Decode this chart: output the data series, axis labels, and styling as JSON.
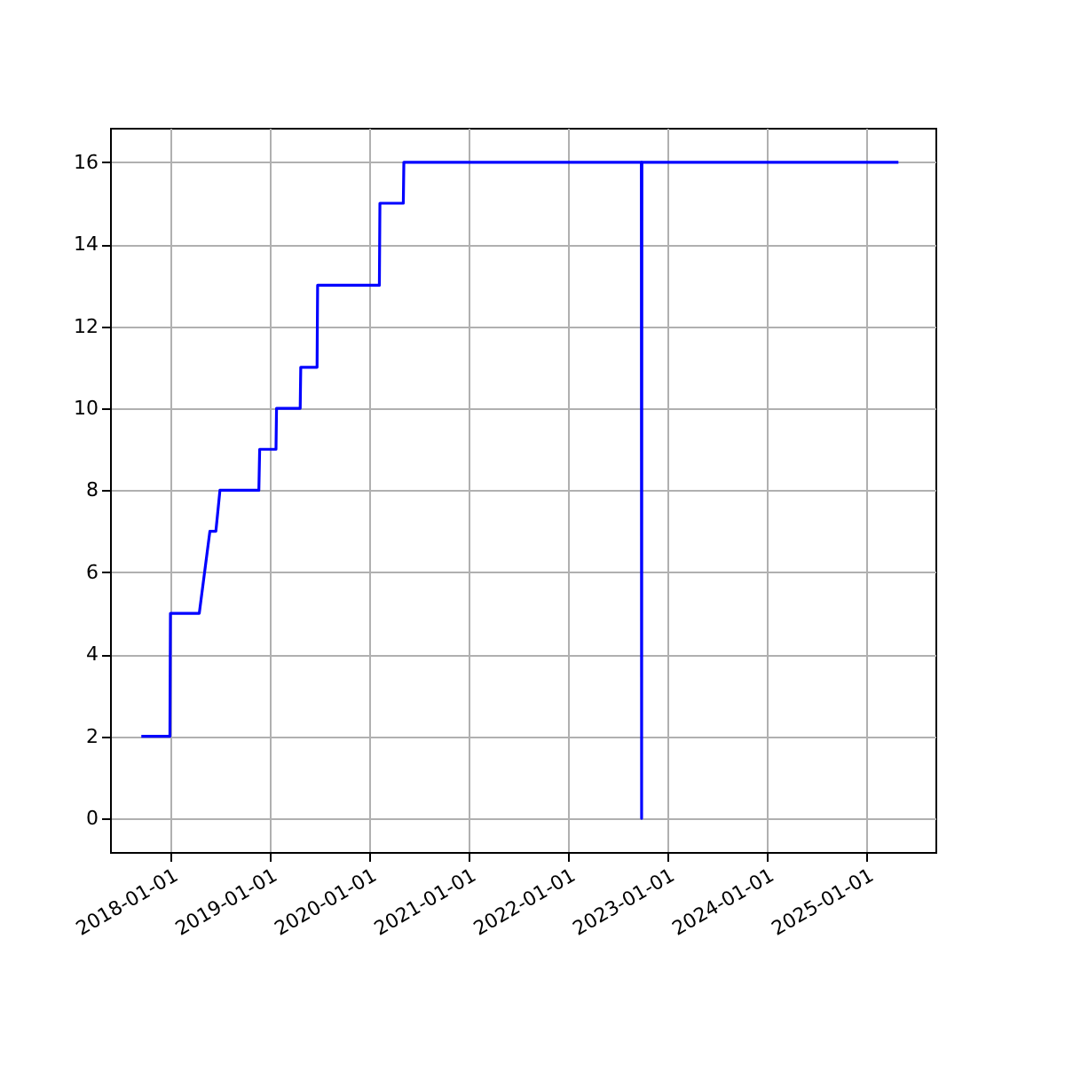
{
  "chart_data": {
    "type": "line",
    "x": [
      "2017-09-16",
      "2017-12-30",
      "2018-01-01",
      "2018-04-17",
      "2018-05-26",
      "2018-06-17",
      "2018-07-02",
      "2018-11-22",
      "2018-11-25",
      "2019-01-24",
      "2019-01-26",
      "2019-04-23",
      "2019-04-25",
      "2019-06-24",
      "2019-06-26",
      "2020-02-08",
      "2020-02-10",
      "2020-05-06",
      "2020-05-08",
      "2022-09-28",
      "2022-09-29",
      "2022-09-30",
      "2025-04-30"
    ],
    "series": [
      {
        "color": "#0000ff",
        "values": [
          2,
          2,
          5,
          5,
          7,
          7,
          8,
          8,
          9,
          9,
          10,
          10,
          11,
          11,
          13,
          13,
          15,
          15,
          16,
          16,
          0,
          16,
          16
        ]
      }
    ],
    "xlim": [
      "2017-05-24",
      "2025-09-13"
    ],
    "xticks": [
      "2018-01-01",
      "2019-01-01",
      "2020-01-01",
      "2021-01-01",
      "2022-01-01",
      "2023-01-01",
      "2024-01-01",
      "2025-01-01"
    ],
    "ylim": [
      -0.82,
      16.84
    ],
    "yticks": [
      0,
      2,
      4,
      6,
      8,
      10,
      12,
      14,
      16
    ],
    "grid": true,
    "marker": "none",
    "line_style": "solid"
  }
}
